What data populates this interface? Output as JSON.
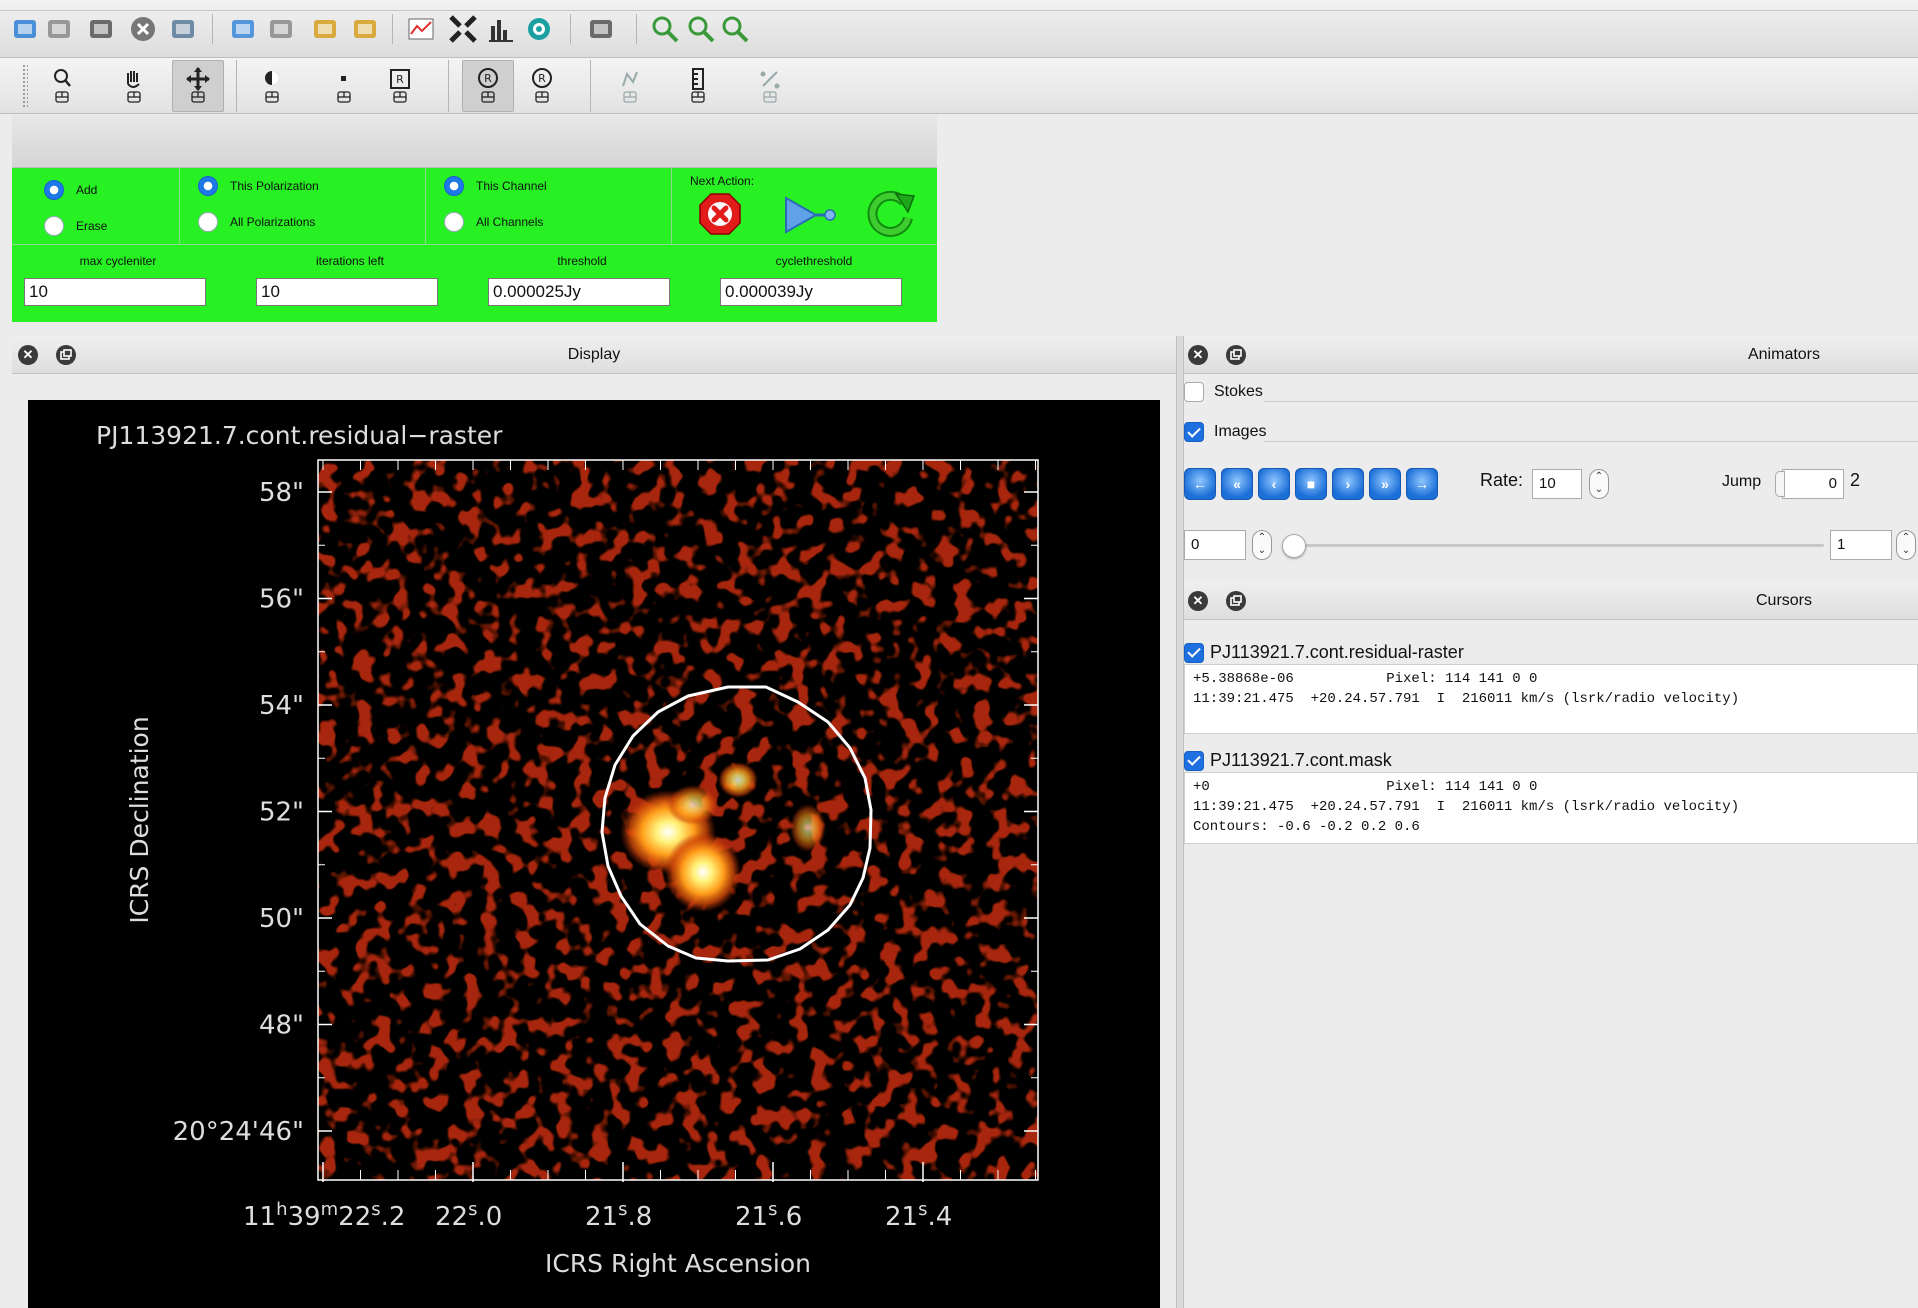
{
  "toolbar_icons": [
    "open-folder-icon",
    "wrench-icon",
    "copy-window-icon",
    "close-circle-icon",
    "paintbrush-icon",
    "new-panel-icon",
    "panel-settings-icon",
    "save-panel-icon",
    "load-panel-icon",
    "profile-chart-icon",
    "shrink-icon",
    "histogram-icon",
    "fit-target-icon",
    "print-icon",
    "zoom-icon",
    "zoom-in-icon",
    "zoom-out-icon"
  ],
  "mouse_tools": [
    "zoom-tool-icon",
    "pan-tool-icon",
    "crosshair-tool-icon",
    "contrast-tool-icon",
    "point-tool-icon",
    "rect-region-tool-icon",
    "ellipse-region-tool-icon",
    "polygon-region-tool-icon",
    "polyline-tool-icon",
    "ruler-tool-icon",
    "distance-tool-icon"
  ],
  "interactive": {
    "add_label": "Add",
    "erase_label": "Erase",
    "this_pol_label": "This Polarization",
    "all_pol_label": "All Polarizations",
    "this_chan_label": "This Channel",
    "all_chan_label": "All Channels",
    "next_action_label": "Next Action:",
    "mode": "add",
    "polarization": "this",
    "channel": "this",
    "fields": [
      {
        "label": "max cycleniter",
        "value": "10"
      },
      {
        "label": "iterations left",
        "value": "10"
      },
      {
        "label": "threshold",
        "value": "0.000025Jy"
      },
      {
        "label": "cyclethreshold",
        "value": "0.000039Jy"
      }
    ]
  },
  "display": {
    "dock_title": "Display",
    "image_title": "PJ113921.7.cont.residual−raster",
    "ylabel": "ICRS Declination",
    "xlabel": "ICRS Right Ascension",
    "y_ticks": [
      "58\"",
      "56\"",
      "54\"",
      "52\"",
      "50\"",
      "48\"",
      "20°24'46\""
    ],
    "x_ticks": [
      {
        "h": "11",
        "hu": "h",
        "m": "39",
        "mu": "m",
        "s": "22",
        "su": "s",
        "f": ".2"
      },
      {
        "s": "22",
        "su": "s",
        "f": ".0"
      },
      {
        "s": "21",
        "su": "s",
        "f": ".8"
      },
      {
        "s": "21",
        "su": "s",
        "f": ".6"
      },
      {
        "s": "21",
        "su": "s",
        "f": ".4"
      }
    ],
    "colors": {
      "accent": "#ff6a00",
      "contour": "#ffffff"
    }
  },
  "animators": {
    "dock_title": "Animators",
    "stokes_label": "Stokes",
    "stokes_checked": false,
    "images_label": "Images",
    "images_checked": true,
    "play_buttons": [
      "←",
      "«",
      "‹",
      "■",
      "›",
      "»",
      "→"
    ],
    "rate_label": "Rate:",
    "rate_value": "10",
    "jump_label": "Jump",
    "jump_value": "0",
    "total": "2",
    "frame_start": "0",
    "frame_end": "1"
  },
  "cursors": {
    "dock_title": "Cursors",
    "items": [
      {
        "name": "PJ113921.7.cont.residual-raster",
        "lines": "+5.38868e-06           Pixel: 114 141 0 0\n11:39:21.475  +20.24.57.791  I  216011 km/s (lsrk/radio velocity)"
      },
      {
        "name": "PJ113921.7.cont.mask",
        "lines": "+0                     Pixel: 114 141 0 0\n11:39:21.475  +20.24.57.791  I  216011 km/s (lsrk/radio velocity)\nContours: -0.6 -0.2 0.2 0.6"
      }
    ]
  }
}
